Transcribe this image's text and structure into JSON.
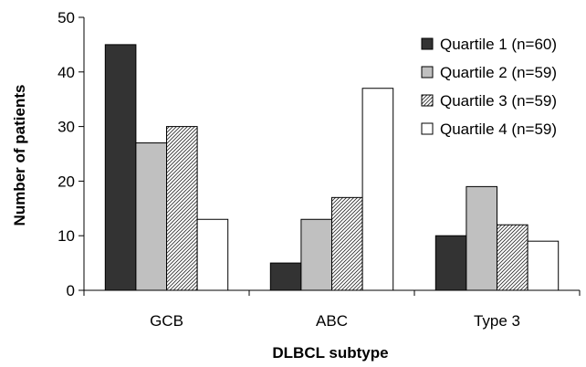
{
  "chart_data": {
    "type": "bar",
    "title": "",
    "xlabel": "DLBCL subtype",
    "ylabel": "Number of patients",
    "categories": [
      "GCB",
      "ABC",
      "Type 3"
    ],
    "ylim": [
      0,
      50
    ],
    "yticks": [
      0,
      10,
      20,
      30,
      40,
      50
    ],
    "grid": false,
    "legend_position": "top-right",
    "series": [
      {
        "name": "Quartile 1 (n=60)",
        "values": [
          45,
          5,
          10
        ],
        "fill": "#333333",
        "pattern": "solid"
      },
      {
        "name": "Quartile 2 (n=59)",
        "values": [
          27,
          13,
          19
        ],
        "fill": "#c0c0c0",
        "pattern": "solid"
      },
      {
        "name": "Quartile 3 (n=59)",
        "values": [
          30,
          17,
          12
        ],
        "fill": "#ffffff",
        "pattern": "diagonal-hatch"
      },
      {
        "name": "Quartile 4 (n=59)",
        "values": [
          13,
          37,
          9
        ],
        "fill": "#ffffff",
        "pattern": "solid"
      }
    ]
  }
}
